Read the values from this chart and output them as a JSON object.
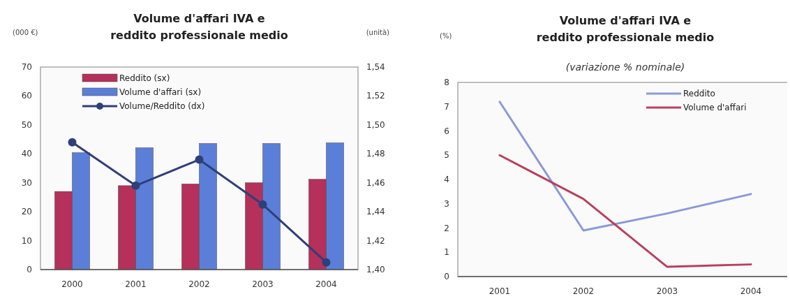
{
  "chart_data": [
    {
      "type": "bar",
      "title": "Volume d'affari IVA e reddito professionale medio",
      "ylabel": "(000 €)",
      "y2label": "(unità)",
      "categories": [
        "2000",
        "2001",
        "2002",
        "2003",
        "2004"
      ],
      "series": [
        {
          "name": "Reddito (sx)",
          "color": "#b5305a",
          "values": [
            27,
            29,
            29.6,
            30,
            31.2
          ]
        },
        {
          "name": "Volume d'affari (sx)",
          "color": "#5b7fd8",
          "values": [
            40.4,
            42.1,
            43.6,
            43.6,
            43.8
          ]
        },
        {
          "name": "Volume/Reddito (dx)",
          "type": "line",
          "axis": "y2",
          "color": "#2e3f7a",
          "marker": "circle",
          "values": [
            1.488,
            1.458,
            1.476,
            1.445,
            1.405
          ]
        }
      ],
      "ylim": [
        0,
        70
      ],
      "yticks": [
        0,
        10,
        20,
        30,
        40,
        50,
        60,
        70
      ],
      "y2lim": [
        1.4,
        1.54
      ],
      "y2ticks": [
        {
          "value": 1.4,
          "label": "1,40"
        },
        {
          "value": 1.42,
          "label": "1,42"
        },
        {
          "value": 1.44,
          "label": "1,44"
        },
        {
          "value": 1.46,
          "label": "1,46"
        },
        {
          "value": 1.48,
          "label": "1,48"
        },
        {
          "value": 1.5,
          "label": "1,50"
        },
        {
          "value": 1.52,
          "label": "1,52"
        },
        {
          "value": 1.54,
          "label": "1,54"
        }
      ],
      "legend": "top left",
      "grid": false
    },
    {
      "type": "line",
      "title": "Volume d'affari IVA e reddito professionale medio",
      "subtitle": "(variazione % nominale)",
      "ylabel": "(%)",
      "categories": [
        "2001",
        "2002",
        "2003",
        "2004"
      ],
      "series": [
        {
          "name": "Reddito",
          "color": "#8a9ad8",
          "values": [
            7.2,
            1.9,
            2.6,
            3.4
          ]
        },
        {
          "name": "Volume d'affari",
          "color": "#b8405e",
          "values": [
            5,
            3.2,
            0.4,
            0.5
          ]
        }
      ],
      "ylim": [
        0,
        8
      ],
      "yticks": [
        0,
        1,
        2,
        3,
        4,
        5,
        6,
        7,
        8
      ],
      "legend": "top right",
      "grid": false
    }
  ]
}
